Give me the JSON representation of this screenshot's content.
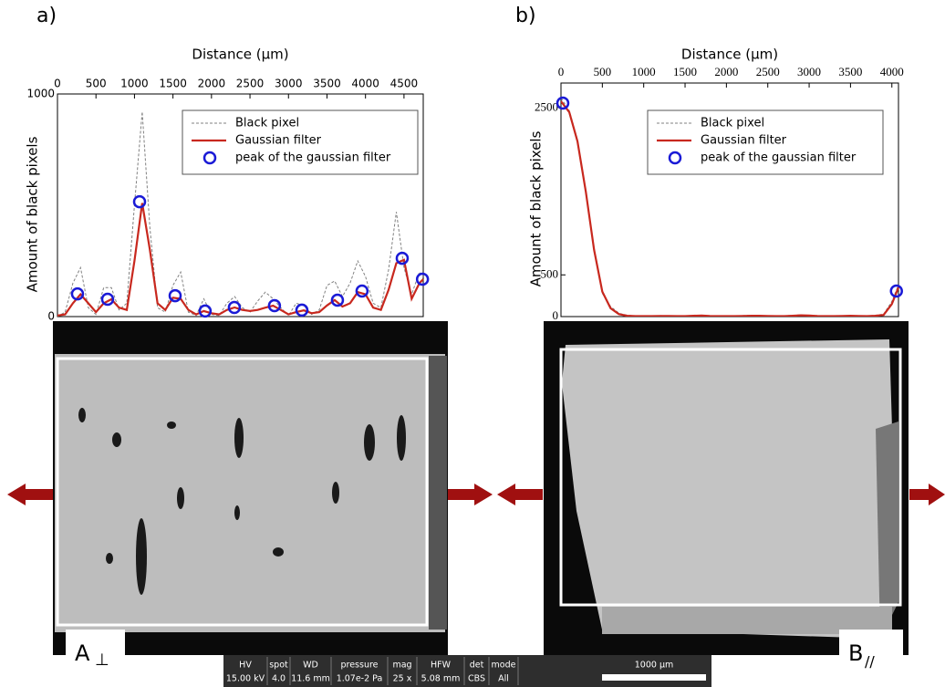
{
  "panels": [
    {
      "label": "a)"
    },
    {
      "label": "b)"
    }
  ],
  "chart_data": [
    {
      "type": "line",
      "xlabel": "Distance (µm)",
      "ylabel": "Amount of black pixels",
      "xlim": [
        0,
        4750
      ],
      "ylim": [
        0,
        1000
      ],
      "xticks": [
        0,
        500,
        1000,
        1500,
        2000,
        2500,
        3000,
        3500,
        4000,
        4500
      ],
      "yticks": [
        0,
        1000
      ],
      "x": [
        0,
        100,
        200,
        300,
        400,
        500,
        600,
        700,
        800,
        900,
        1000,
        1100,
        1200,
        1300,
        1400,
        1500,
        1600,
        1700,
        1800,
        1900,
        2000,
        2100,
        2200,
        2300,
        2400,
        2500,
        2600,
        2700,
        2800,
        2900,
        3000,
        3100,
        3200,
        3300,
        3400,
        3500,
        3600,
        3700,
        3800,
        3900,
        4000,
        4100,
        4200,
        4300,
        4400,
        4500,
        4600,
        4700,
        4750
      ],
      "series": [
        {
          "name": "Black pixel",
          "color": "#808080",
          "dashed": true,
          "values": [
            0,
            20,
            150,
            220,
            40,
            10,
            130,
            130,
            30,
            60,
            500,
            920,
            400,
            40,
            20,
            140,
            200,
            20,
            5,
            80,
            10,
            5,
            60,
            90,
            40,
            20,
            70,
            110,
            80,
            40,
            5,
            60,
            50,
            10,
            30,
            140,
            160,
            90,
            150,
            250,
            180,
            60,
            40,
            210,
            470,
            220,
            100,
            200,
            180
          ]
        },
        {
          "name": "Gaussian filter",
          "color": "#c8281e",
          "values": [
            5,
            10,
            60,
            100,
            60,
            20,
            60,
            78,
            40,
            30,
            250,
            510,
            300,
            60,
            30,
            85,
            80,
            30,
            10,
            25,
            15,
            10,
            30,
            41,
            30,
            25,
            30,
            40,
            49,
            30,
            10,
            20,
            28,
            15,
            20,
            50,
            74,
            45,
            60,
            110,
            100,
            40,
            30,
            120,
            240,
            255,
            80,
            150,
            168
          ]
        },
        {
          "name": "peak of the gaussian filter",
          "color": "#1a1ad6",
          "marker": "circle",
          "x": [
            260,
            651,
            1066,
            1528,
            1918,
            2297,
            2818,
            3174,
            3636,
            3955,
            4477,
            4740
          ],
          "values": [
            102,
            78,
            516,
            94,
            25,
            41,
            49,
            29,
            74,
            115,
            262,
            168
          ]
        }
      ]
    },
    {
      "type": "line",
      "xlabel": "Distance (µm)",
      "ylabel": "Amount of black pixels",
      "xlim": [
        0,
        4080
      ],
      "ylim": [
        0,
        2800
      ],
      "xticks": [
        0,
        500,
        1000,
        1500,
        2000,
        2500,
        3000,
        3500,
        4000
      ],
      "yticks": [
        0,
        500,
        2500
      ],
      "x": [
        0,
        100,
        200,
        300,
        400,
        500,
        600,
        700,
        800,
        900,
        1000,
        1100,
        1200,
        1300,
        1400,
        1500,
        1600,
        1700,
        1800,
        1900,
        2000,
        2100,
        2200,
        2300,
        2400,
        2500,
        2600,
        2700,
        2800,
        2900,
        3000,
        3100,
        3200,
        3300,
        3400,
        3500,
        3600,
        3700,
        3800,
        3900,
        4000,
        4080
      ],
      "series": [
        {
          "name": "Black pixel",
          "color": "#808080",
          "dashed": true,
          "values": [
            2620,
            2470,
            2120,
            1480,
            820,
            280,
            120,
            40,
            15,
            10,
            3,
            8,
            12,
            5,
            2,
            8,
            15,
            10,
            5,
            3,
            10,
            6,
            12,
            15,
            8,
            4,
            2,
            10,
            14,
            20,
            10,
            5,
            3,
            9,
            12,
            6,
            4,
            8,
            15,
            30,
            180,
            380
          ]
        },
        {
          "name": "Gaussian filter",
          "color": "#c8281e",
          "values": [
            2580,
            2450,
            2100,
            1500,
            800,
            300,
            100,
            30,
            10,
            5,
            5,
            5,
            8,
            8,
            5,
            5,
            10,
            12,
            8,
            5,
            5,
            5,
            8,
            10,
            10,
            8,
            5,
            5,
            10,
            15,
            12,
            8,
            5,
            5,
            8,
            10,
            8,
            5,
            10,
            20,
            150,
            350
          ]
        },
        {
          "name": "peak of the gaussian filter",
          "color": "#1a1ad6",
          "marker": "circle",
          "x": [
            22,
            4055
          ],
          "values": [
            2560,
            306
          ]
        }
      ]
    }
  ],
  "micrographs": [
    {
      "label": "A",
      "subscript": "⊥"
    },
    {
      "label": "B",
      "subscript": "//"
    }
  ],
  "databar": {
    "headers": [
      "HV",
      "spot",
      "WD",
      "pressure",
      "mag",
      "HFW",
      "det",
      "mode"
    ],
    "values": [
      "15.00 kV",
      "4.0",
      "11.6 mm",
      "1.07e-2 Pa",
      "25 x",
      "5.08 mm",
      "CBS",
      "All"
    ],
    "scale": "1000 µm"
  }
}
